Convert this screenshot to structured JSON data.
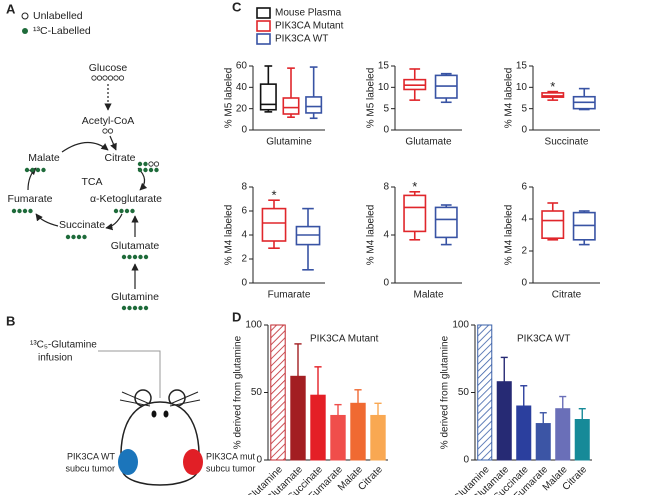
{
  "panel_labels": [
    "A",
    "B",
    "C",
    "D"
  ],
  "pathway": {
    "legend": [
      "Unlabelled",
      "¹³C-Labelled"
    ],
    "nodes": [
      "Glucose",
      "Acetyl-CoA",
      "Citrate",
      "Malate",
      "TCA",
      "Fumarate",
      "α-Ketoglutarate",
      "Succinate",
      "Glutamate",
      "Glutamine"
    ]
  },
  "mouse": {
    "infusion": [
      "¹³C₅-Glutamine",
      "infusion"
    ],
    "wt_tumor": [
      "PIK3CA WT",
      "subcu tumor"
    ],
    "mut_tumor": [
      "PIK3CA mut",
      "subcu tumor"
    ]
  },
  "chart_data": [
    {
      "type": "box",
      "ylabel": "% M5 labeled",
      "categories": [
        "Glutamine"
      ],
      "ylim": [
        0,
        60
      ],
      "yticks": [
        0,
        20,
        40,
        60
      ],
      "series": [
        {
          "name": "Mouse Plasma",
          "color": "#111111",
          "values": [
            {
              "min": 17,
              "q1": 19,
              "median": 24,
              "q3": 43,
              "max": 60
            }
          ]
        },
        {
          "name": "PIK3CA Mutant",
          "color": "#e0262b",
          "values": [
            {
              "min": 12,
              "q1": 15,
              "median": 21,
              "q3": 30,
              "max": 58
            }
          ]
        },
        {
          "name": "PIK3CA WT",
          "color": "#3853a4",
          "values": [
            {
              "min": 11,
              "q1": 16,
              "median": 22,
              "q3": 31,
              "max": 59
            }
          ]
        }
      ]
    },
    {
      "type": "box",
      "ylabel": "% M5 labeled",
      "categories": [
        "Glutamate"
      ],
      "ylim": [
        0,
        15
      ],
      "yticks": [
        0,
        5,
        10,
        15
      ],
      "series": [
        {
          "color": "#e0262b",
          "values": [
            {
              "min": 7,
              "q1": 9.5,
              "median": 10.5,
              "q3": 11.8,
              "max": 14.3
            }
          ]
        },
        {
          "color": "#3853a4",
          "values": [
            {
              "min": 6.5,
              "q1": 7.5,
              "median": 10.3,
              "q3": 12.8,
              "max": 13.2
            }
          ]
        }
      ]
    },
    {
      "type": "box",
      "ylabel": "% M4 labeled",
      "categories": [
        "Succinate"
      ],
      "ylim": [
        0,
        15
      ],
      "yticks": [
        0,
        5,
        10,
        15
      ],
      "annotation": "*",
      "series": [
        {
          "color": "#e0262b",
          "values": [
            {
              "min": 7,
              "q1": 7.7,
              "median": 8,
              "q3": 8.7,
              "max": 9
            }
          ]
        },
        {
          "color": "#3853a4",
          "values": [
            {
              "min": 4.8,
              "q1": 5,
              "median": 6.5,
              "q3": 7.8,
              "max": 9.7
            }
          ]
        }
      ]
    },
    {
      "type": "box",
      "ylabel": "% M4 labeled",
      "categories": [
        "Fumarate"
      ],
      "ylim": [
        0,
        8
      ],
      "yticks": [
        0,
        2,
        4,
        6,
        8
      ],
      "annotation": "*",
      "series": [
        {
          "color": "#e0262b",
          "values": [
            {
              "min": 2.9,
              "q1": 3.5,
              "median": 5,
              "q3": 6.2,
              "max": 6.9
            }
          ]
        },
        {
          "color": "#3853a4",
          "values": [
            {
              "min": 1.1,
              "q1": 3.2,
              "median": 4,
              "q3": 4.7,
              "max": 6.2
            }
          ]
        }
      ]
    },
    {
      "type": "box",
      "ylabel": "% M4 labeled",
      "categories": [
        "Malate"
      ],
      "ylim": [
        0,
        8
      ],
      "yticks": [
        0,
        4,
        8
      ],
      "annotation": "*",
      "series": [
        {
          "color": "#e0262b",
          "values": [
            {
              "min": 3.6,
              "q1": 4.3,
              "median": 6.3,
              "q3": 7.3,
              "max": 7.6
            }
          ]
        },
        {
          "color": "#3853a4",
          "values": [
            {
              "min": 3.2,
              "q1": 3.8,
              "median": 5.3,
              "q3": 6.3,
              "max": 6.5
            }
          ]
        }
      ]
    },
    {
      "type": "box",
      "ylabel": "% M4 labeled",
      "categories": [
        "Citrate"
      ],
      "ylim": [
        0,
        6
      ],
      "yticks": [
        0,
        2,
        4,
        6
      ],
      "series": [
        {
          "color": "#e0262b",
          "values": [
            {
              "min": 2.7,
              "q1": 2.8,
              "median": 3.9,
              "q3": 4.5,
              "max": 5
            }
          ]
        },
        {
          "color": "#3853a4",
          "values": [
            {
              "min": 2.4,
              "q1": 2.7,
              "median": 3.6,
              "q3": 4.4,
              "max": 4.5
            }
          ]
        }
      ]
    },
    {
      "type": "bar",
      "title": "PIK3CA Mutant",
      "ylabel": "% derived from glutamine",
      "categories": [
        "Glutamine",
        "Glutamate",
        "Succinate",
        "Fumarate",
        "Malate",
        "Citrate"
      ],
      "values": [
        100,
        62,
        48,
        33,
        42,
        33
      ],
      "errors": [
        null,
        24,
        21,
        8,
        10,
        9
      ],
      "colors": [
        "#c0292f",
        "#a31e22",
        "#e41f26",
        "#f04e4b",
        "#f06a32",
        "#f9a852"
      ],
      "hatch": [
        true,
        false,
        false,
        false,
        false,
        false
      ],
      "ylim": [
        0,
        100
      ],
      "yticks": [
        0,
        50,
        100
      ]
    },
    {
      "type": "bar",
      "title": "PIK3CA WT",
      "ylabel": "% derived from glutamine",
      "categories": [
        "Glutamine",
        "Glutamate",
        "Succinate",
        "Fumarate",
        "Malate",
        "Citrate"
      ],
      "values": [
        100,
        58,
        40,
        27,
        38,
        30
      ],
      "errors": [
        null,
        18,
        15,
        8,
        9,
        8
      ],
      "colors": [
        "#3a60a8",
        "#262a74",
        "#2b3f9e",
        "#3c55a5",
        "#6a6fb8",
        "#168a98"
      ],
      "hatch": [
        true,
        false,
        false,
        false,
        false,
        false
      ],
      "ylim": [
        0,
        100
      ],
      "yticks": [
        0,
        50,
        100
      ]
    }
  ]
}
